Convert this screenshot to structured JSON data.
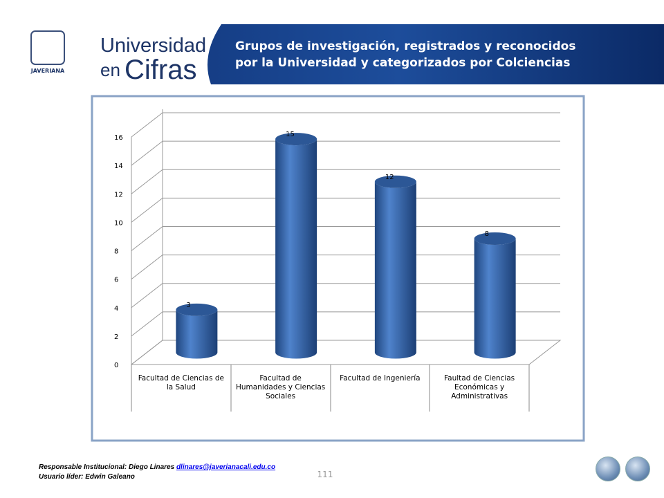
{
  "header": {
    "brand_line1": "Universidad",
    "brand_en": "en",
    "brand_cifras": "Cifras",
    "crest_text": "JAVERIANA",
    "title_lines": [
      "Grupos de investigación, registrados y reconocidos",
      "por la Universidad y categorizados  por Colciencias"
    ]
  },
  "chart_data": {
    "type": "bar",
    "categories": [
      "Facultad de Ciencias de la Salud",
      "Facultad de Humanidades y Ciencias Sociales",
      "Facultad de Ingeniería",
      "Faultad de Ciencias Económicas y Administrativas"
    ],
    "values": [
      3,
      15,
      12,
      8
    ],
    "color": "#3a6cb5",
    "ylim": [
      0,
      16
    ],
    "yticks": [
      0,
      2,
      4,
      6,
      8,
      10,
      12,
      14,
      16
    ],
    "grid": true
  },
  "footer": {
    "responsible": "Responsable Institucional: Diego Linares ",
    "email": "dlinares@javerianacali.edu.co",
    "leader": "Usuario líder: Edwin Galeano",
    "page": "111"
  }
}
